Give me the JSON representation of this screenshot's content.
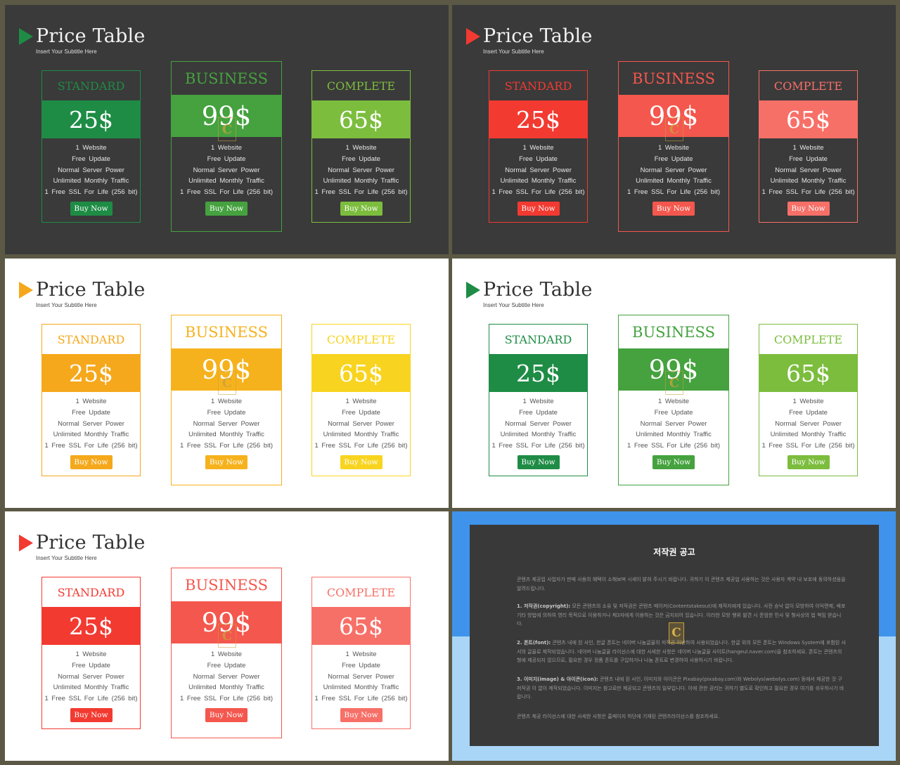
{
  "slide_text": {
    "title": "Price Table",
    "subtitle": "Insert Your Subtitle Here",
    "plans": [
      "STANDARD",
      "BUSINESS",
      "COMPLETE"
    ],
    "prices": [
      "25$",
      "99$",
      "65$"
    ],
    "features": [
      "1 Website",
      "Free Update",
      "Normal Server Power",
      "Unlimited Monthly Traffic",
      "1 Free SSL For Life (256 bit)"
    ],
    "buy_label": "Buy Now"
  },
  "themes": [
    {
      "background": "dark",
      "colors": [
        "#1e8c45",
        "#45a23f",
        "#7cbd3e"
      ],
      "accent": "#1e8c45"
    },
    {
      "background": "dark",
      "colors": [
        "#f23a31",
        "#f4574d",
        "#f77068"
      ],
      "accent": "#f23a31"
    },
    {
      "background": "light",
      "colors": [
        "#f5a81c",
        "#f6b21d",
        "#f8d420"
      ],
      "accent": "#f5a81c"
    },
    {
      "background": "light",
      "colors": [
        "#1e8c45",
        "#45a23f",
        "#7cbd3e"
      ],
      "accent": "#1e8c45"
    },
    {
      "background": "light",
      "colors": [
        "#f23a31",
        "#f4574d",
        "#f77068"
      ],
      "accent": "#f23a31"
    }
  ],
  "notice": {
    "title": "저작권 공고",
    "intro": "콘텐츠 제공업 사업자가 판매 사용의 혜택이 소해보며 시세이 밝혀 주시기 바랍니다. 귀하기 이 콘텐츠 제공업 사용하는 것은 사용자 계약 내 보호에 동의하셨음을 알려드립니다.",
    "sections": [
      {
        "heading": "1. 저작권(copyright):",
        "body": "모든 콘텐츠의 소유 및 저작권은 콘텐츠 메이커(Contentstakeout)에 제작자에게 있습니다. 사전 승낙 없이 모방하여 이익편제, 배포 기타 방법에 의하여 영리 목적으로 이용하거나 제3자에게 이용하는 것은 금지되어 있습니다. 이러한 모방 행위 발견 시 준엄한 민사 및 형사상의 법 책임 받습니다."
      },
      {
        "heading": "2. 폰트(font):",
        "body": "콘텐츠 내에 된 사인, 한글 폰트는 네이버 나눔글꼴의 저작권 위반하여 사용되었습니다. 한글 외의 모든 폰트는 Windows System에 포함된 사서의 글꼴로 제작되었습니다. 네이버 나눔글꼴 라이선스에 대한 사세한 사항은 네이버 나눔글꼴 사이트(hangeul.naver.com)을 참조하세요. 폰트는 콘텐츠의 형에 제공되지 않으므로, 필요한 경우 정품 폰트를 구입하거나 나눔 폰트로 변경하여 사용하시기 바랍니다."
      },
      {
        "heading": "3. 이미지(image) & 아이콘(icon):",
        "body": "콘텐츠 내에 된 사인, 이미지와 아이콘은 Pixabay(pixabay.com)와 Webolys(webolys.com) 등에서 제공한 것 구 저작권 이 없이 제작되었습니다. 이미지는 참고로만 제공되고 콘텐츠의 일부입니다. 이에 관한 권리는 귀하기 별도로 확인하고 필요한 경우 여기를 쉬우하시기 바랍니다."
      }
    ],
    "outro": "콘텐츠 제공 라이선스에 대한 사세한 사항은 홈페이지 하단에 기재된 콘텐츠라이선스를 참조하세요."
  }
}
